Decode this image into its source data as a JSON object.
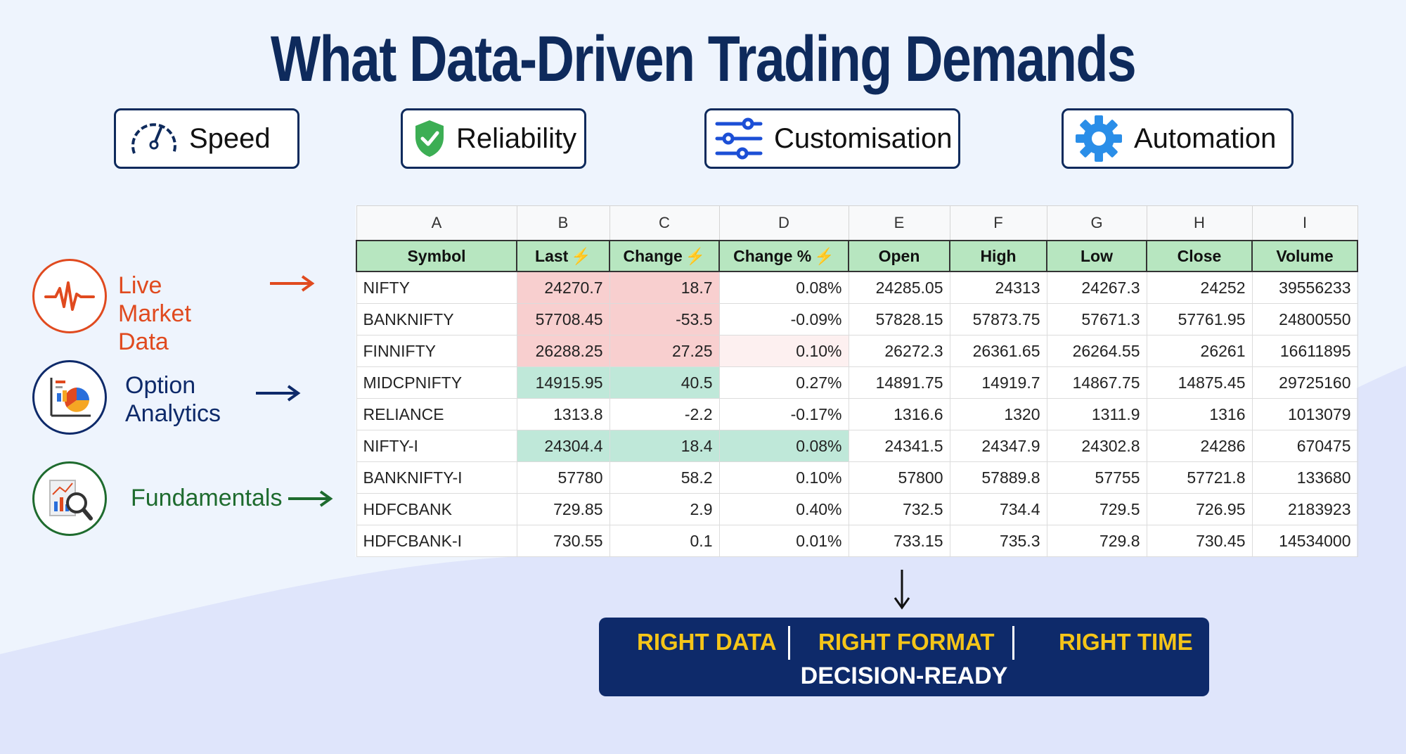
{
  "title": "What Data-Driven Trading Demands",
  "features": [
    {
      "label": "Speed",
      "icon": "speedometer-icon"
    },
    {
      "label": "Reliability",
      "icon": "shield-check-icon"
    },
    {
      "label": "Customisation",
      "icon": "sliders-icon"
    },
    {
      "label": "Automation",
      "icon": "gear-icon"
    }
  ],
  "left_items": [
    {
      "label_line1": "Live Market",
      "label_line2": "Data",
      "icon": "heartbeat-pulse-icon",
      "color": "#e04a1f"
    },
    {
      "label_line1": "Option",
      "label_line2": "Analytics",
      "icon": "chart-analytics-icon",
      "color": "#0e2a6a"
    },
    {
      "label_line1": "Fundamentals",
      "label_line2": "",
      "icon": "magnifier-report-icon",
      "color": "#1e6b2e"
    }
  ],
  "sheet": {
    "column_letters": [
      "A",
      "B",
      "C",
      "D",
      "E",
      "F",
      "G",
      "H",
      "I"
    ],
    "headers": [
      "Symbol",
      "Last",
      "Change",
      "Change %",
      "Open",
      "High",
      "Low",
      "Close",
      "Volume"
    ],
    "rows": [
      [
        "NIFTY",
        "24270.7",
        "18.7",
        "0.08%",
        "24285.05",
        "24313",
        "24267.3",
        "24252",
        "39556233"
      ],
      [
        "BANKNIFTY",
        "57708.45",
        "-53.5",
        "-0.09%",
        "57828.15",
        "57873.75",
        "57671.3",
        "57761.95",
        "24800550"
      ],
      [
        "FINNIFTY",
        "26288.25",
        "27.25",
        "0.10%",
        "26272.3",
        "26361.65",
        "26264.55",
        "26261",
        "16611895"
      ],
      [
        "MIDCPNIFTY",
        "14915.95",
        "40.5",
        "0.27%",
        "14891.75",
        "14919.7",
        "14867.75",
        "14875.45",
        "29725160"
      ],
      [
        "RELIANCE",
        "1313.8",
        "-2.2",
        "-0.17%",
        "1316.6",
        "1320",
        "1311.9",
        "1316",
        "1013079"
      ],
      [
        "NIFTY-I",
        "24304.4",
        "18.4",
        "0.08%",
        "24341.5",
        "24347.9",
        "24302.8",
        "24286",
        "670475"
      ],
      [
        "BANKNIFTY-I",
        "57780",
        "58.2",
        "0.10%",
        "57800",
        "57889.8",
        "57755",
        "57721.8",
        "133680"
      ],
      [
        "HDFCBANK",
        "729.85",
        "2.9",
        "0.40%",
        "732.5",
        "734.4",
        "729.5",
        "726.95",
        "2183923"
      ],
      [
        "HDFCBANK-I",
        "730.55",
        "0.1",
        "0.01%",
        "733.15",
        "735.3",
        "729.8",
        "730.45",
        "14534000"
      ]
    ],
    "highlight_colors": {
      "down": "#f8cfcf",
      "up": "#bfe8d9",
      "header": "#b7e6c0"
    }
  },
  "banner": {
    "word1": "RIGHT DATA",
    "word2": "RIGHT FORMAT",
    "word3": "RIGHT TIME",
    "subtitle": "DECISION-READY"
  },
  "colors": {
    "navy": "#0e2a5c",
    "accent_yellow": "#f5c518",
    "orange": "#e04a1f",
    "green": "#1e6b2e"
  }
}
